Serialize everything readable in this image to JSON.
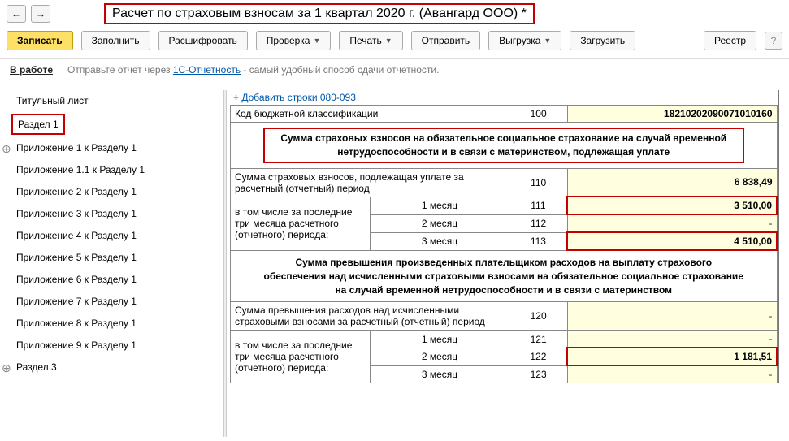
{
  "title": "Расчет по страховым взносам за 1 квартал 2020 г. (Авангард ООО) *",
  "nav": {
    "back": "←",
    "fwd": "→"
  },
  "toolbar": {
    "write": "Записать",
    "fill": "Заполнить",
    "decode": "Расшифровать",
    "check": "Проверка",
    "print": "Печать",
    "send": "Отправить",
    "export": "Выгрузка",
    "load": "Загрузить",
    "registry": "Реестр"
  },
  "status": {
    "state": "В работе",
    "hint_pre": "Отправьте отчет через ",
    "hint_link": "1С-Отчетность",
    "hint_post": " - самый удобный способ сдачи отчетности."
  },
  "sidebar": {
    "items": [
      "Титульный лист",
      "Раздел 1",
      "Приложение 1 к Разделу 1",
      "Приложение 1.1 к Разделу 1",
      "Приложение 2 к Разделу 1",
      "Приложение 3 к Разделу 1",
      "Приложение 4 к Разделу 1",
      "Приложение 5 к Разделу 1",
      "Приложение 6 к Разделу 1",
      "Приложение 7 к Разделу 1",
      "Приложение 8 к Разделу 1",
      "Приложение 9 к Разделу 1",
      "Раздел 3"
    ]
  },
  "main": {
    "add_link": "Добавить строки 080-093",
    "kbk_label": "Код бюджетной классификации",
    "kbk_code": "100",
    "kbk_value": "18210202090071010160",
    "sec1_title": "Сумма страховых взносов на обязательное социальное страхование на случай временной нетрудоспособности и в связи с материнством, подлежащая уплате",
    "row110_label": "Сумма страховых взносов, подлежащая уплате за расчетный (отчетный) период",
    "row110_code": "110",
    "row110_val": "6 838,49",
    "sub_label": "в том числе за последние три месяца расчетного (отчетного) периода:",
    "m1": "1 месяц",
    "m2": "2 месяц",
    "m3": "3 месяц",
    "row111_code": "111",
    "row111_val": "3 510,00",
    "row112_code": "112",
    "row112_val": "-",
    "row113_code": "113",
    "row113_val": "4 510,00",
    "sec2_title": "Сумма превышения произведенных плательщиком расходов на выплату страхового обеспечения над исчисленными страховыми взносами на обязательное социальное страхование на случай временной нетрудоспособности и в связи с материнством",
    "row120_label": "Сумма превышения расходов над исчисленными страховыми взносами за расчетный (отчетный) период",
    "row120_code": "120",
    "row120_val": "-",
    "row121_code": "121",
    "row121_val": "-",
    "row122_code": "122",
    "row122_val": "1 181,51",
    "row123_code": "123",
    "row123_val": "-"
  }
}
